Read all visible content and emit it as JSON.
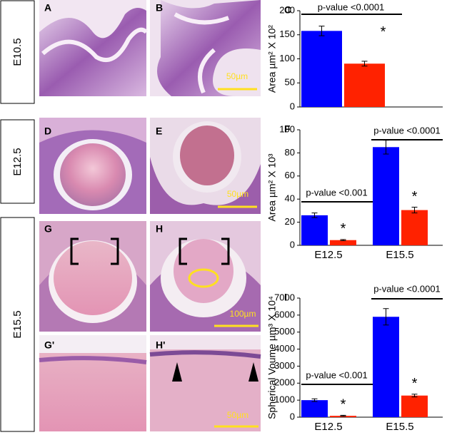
{
  "figure": {
    "rows": [
      "E10.5",
      "E12.5",
      "E15.5"
    ],
    "panels": [
      "A",
      "B",
      "D",
      "E",
      "G",
      "H",
      "G'",
      "H'"
    ],
    "scale_bars": [
      "50µm",
      "50µm",
      "100µm",
      "50µm"
    ]
  },
  "chart_data": [
    {
      "type": "bar",
      "panel": "C",
      "ylabel": "Area µm² X 10²",
      "ylim": [
        0,
        200
      ],
      "yticks": [
        0,
        50,
        100,
        150,
        200
      ],
      "series": [
        {
          "color": "#0000ff",
          "values": [
            158
          ],
          "errors": [
            10
          ]
        },
        {
          "color": "#ff2200",
          "values": [
            90
          ],
          "errors": [
            5
          ]
        }
      ],
      "annotations": [
        "p-value <0.0001"
      ],
      "markers": [
        "*"
      ]
    },
    {
      "type": "bar",
      "panel": "F",
      "ylabel": "Area µm² X 10³",
      "categories": [
        "E12.5",
        "E15.5"
      ],
      "ylim": [
        0,
        100
      ],
      "yticks": [
        0,
        20,
        40,
        60,
        80,
        100
      ],
      "series": [
        {
          "color": "#0000ff",
          "values": [
            26,
            85
          ],
          "errors": [
            2,
            6
          ]
        },
        {
          "color": "#ff2200",
          "values": [
            4.5,
            30.5
          ],
          "errors": [
            0.5,
            2.5
          ]
        }
      ],
      "annotations": [
        "p-value <0.001",
        "p-value <0.0001"
      ],
      "markers": [
        "*",
        "*"
      ]
    },
    {
      "type": "bar",
      "panel": "I",
      "ylabel": "Spherical Voume µm³ X 10⁴",
      "categories": [
        "E12.5",
        "E15.5"
      ],
      "ylim": [
        0,
        7000
      ],
      "yticks": [
        0,
        1000,
        2000,
        3000,
        4000,
        5000,
        6000,
        7000
      ],
      "series": [
        {
          "color": "#0000ff",
          "values": [
            1000,
            5900
          ],
          "errors": [
            80,
            480
          ]
        },
        {
          "color": "#ff2200",
          "values": [
            80,
            1270
          ],
          "errors": [
            30,
            80
          ]
        }
      ],
      "annotations": [
        "p-value <0.001",
        "p-value <0.0001"
      ],
      "markers": [
        "*",
        "*"
      ]
    }
  ]
}
